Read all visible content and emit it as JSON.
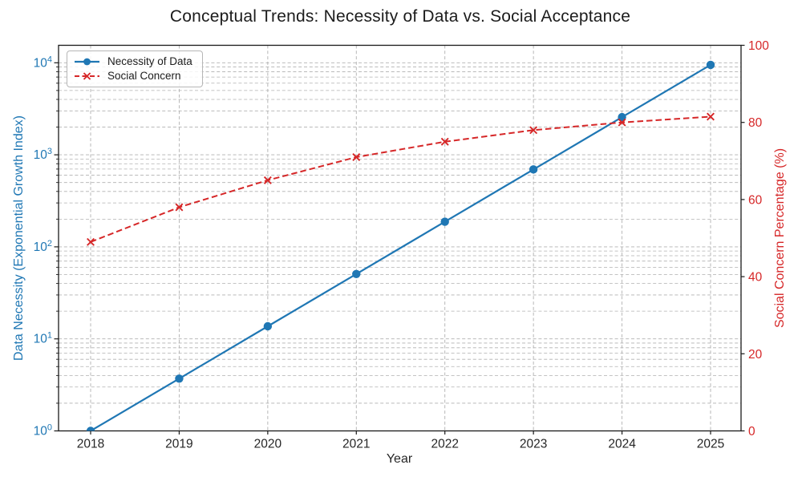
{
  "chart_data": {
    "type": "line",
    "title": "Conceptual Trends: Necessity of Data vs. Social Acceptance",
    "xlabel": "Year",
    "x": [
      2018,
      2019,
      2020,
      2021,
      2022,
      2023,
      2024,
      2025
    ],
    "series": [
      {
        "name": "Necessity of Data",
        "axis": "left",
        "color": "#1f77b4",
        "line_style": "solid",
        "marker": "circle",
        "values": [
          1,
          3.7,
          13.7,
          50.7,
          187.4,
          693.4,
          2565.7,
          9493.2
        ]
      },
      {
        "name": "Social Concern",
        "axis": "right",
        "color": "#d62728",
        "line_style": "dashed",
        "marker": "x",
        "values": [
          49,
          58,
          65,
          71,
          75,
          78,
          80,
          81.5
        ]
      }
    ],
    "left_axis": {
      "label": "Data Necessity (Exponential Growth Index)",
      "scale": "log",
      "tick_labels": [
        "10⁰",
        "10¹",
        "10²",
        "10³",
        "10⁴"
      ],
      "tick_exponents": [
        0,
        1,
        2,
        3,
        4
      ],
      "range": [
        1,
        15850
      ],
      "color": "#1f77b4"
    },
    "right_axis": {
      "label": "Social Concern Percentage (%)",
      "scale": "linear",
      "ticks": [
        0,
        20,
        40,
        60,
        80,
        100
      ],
      "range": [
        0,
        100
      ],
      "color": "#d62728"
    },
    "grid": {
      "visible": true,
      "line_style": "dashed",
      "color": "#b0b0b0"
    },
    "legend": {
      "position": "upper-left"
    },
    "text_color": "#262626",
    "spine_color": "#1a1a1a"
  }
}
